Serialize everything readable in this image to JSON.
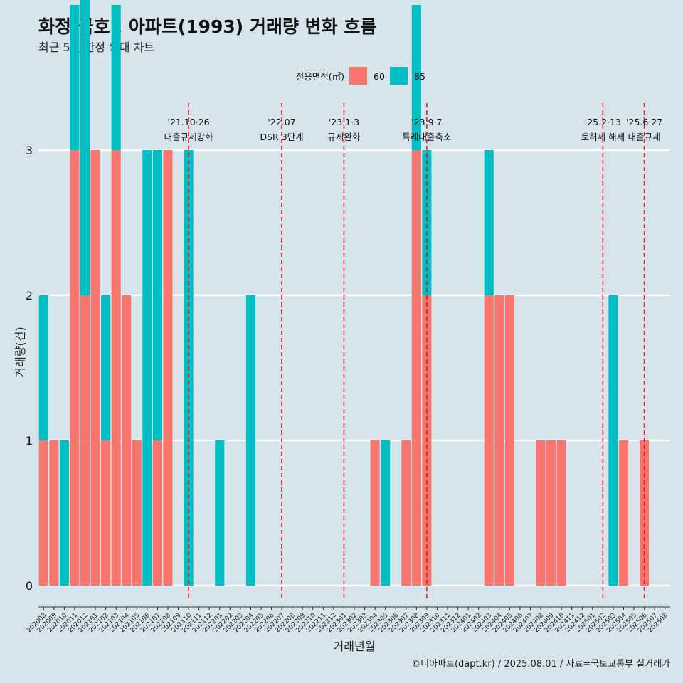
{
  "chart_data": {
    "type": "bar",
    "title": "화정 금호2 아파트(1993) 거래량 변화 흐름",
    "subtitle": "최근 5년 한정 확대 차트",
    "caption": "©디아파트(dapt.kr) / 2025.08.01 / 자료=국토교통부 실거래가",
    "xlabel": "거래년월",
    "ylabel": "거래량(건)",
    "ylim": [
      0,
      3
    ],
    "yticks": [
      0,
      1,
      2,
      3
    ],
    "legend": {
      "title": "전용면적(㎡)",
      "position": "top"
    },
    "categories": [
      "202008",
      "202009",
      "202010",
      "202011",
      "202012",
      "202101",
      "202102",
      "202103",
      "202104",
      "202105",
      "202106",
      "202107",
      "202108",
      "202109",
      "202110",
      "202111",
      "202112",
      "202201",
      "202202",
      "202203",
      "202204",
      "202205",
      "202206",
      "202207",
      "202208",
      "202209",
      "202210",
      "202211",
      "202212",
      "202301",
      "202302",
      "202303",
      "202304",
      "202305",
      "202306",
      "202307",
      "202308",
      "202309",
      "202310",
      "202311",
      "202312",
      "202401",
      "202402",
      "202403",
      "202404",
      "202405",
      "202406",
      "202407",
      "202408",
      "202409",
      "202410",
      "202411",
      "202412",
      "202501",
      "202502",
      "202503",
      "202504",
      "202505",
      "202506",
      "202507",
      "202508"
    ],
    "series": [
      {
        "name": "60",
        "color": "#f8766d",
        "values": [
          1,
          1,
          0,
          3,
          2,
          3,
          1,
          3,
          2,
          1,
          0,
          1,
          3,
          0,
          0,
          0,
          0,
          0,
          0,
          0,
          0,
          0,
          0,
          0,
          0,
          0,
          0,
          0,
          0,
          0,
          0,
          0,
          1,
          0,
          0,
          1,
          3,
          2,
          0,
          0,
          0,
          0,
          0,
          2,
          2,
          2,
          0,
          0,
          1,
          1,
          1,
          0,
          0,
          0,
          0,
          0,
          1,
          0,
          1,
          0,
          0
        ]
      },
      {
        "name": "85",
        "color": "#00bfc4",
        "values": [
          1,
          0,
          1,
          1,
          3,
          0,
          1,
          1,
          0,
          0,
          3,
          2,
          0,
          0,
          3,
          0,
          0,
          1,
          0,
          0,
          2,
          0,
          0,
          0,
          0,
          0,
          0,
          0,
          0,
          0,
          0,
          0,
          0,
          1,
          0,
          0,
          1,
          1,
          0,
          0,
          0,
          0,
          0,
          1,
          0,
          0,
          0,
          0,
          0,
          0,
          0,
          0,
          0,
          0,
          0,
          2,
          0,
          0,
          0,
          0,
          0
        ]
      }
    ],
    "annotations": [
      {
        "date": "'21.10·26",
        "label": "대출규제강화",
        "month": "202110"
      },
      {
        "date": "'22.07",
        "label": "DSR 3단계",
        "month": "202207"
      },
      {
        "date": "'23.1·3",
        "label": "규제완화",
        "month": "202301"
      },
      {
        "date": "'23.9·7",
        "label": "특례대출축소",
        "month": "202309"
      },
      {
        "date": "'25.2·13",
        "label": "토허제 해제",
        "month": "202502"
      },
      {
        "date": "'25.6·27",
        "label": "대출규제",
        "month": "202506"
      }
    ]
  }
}
